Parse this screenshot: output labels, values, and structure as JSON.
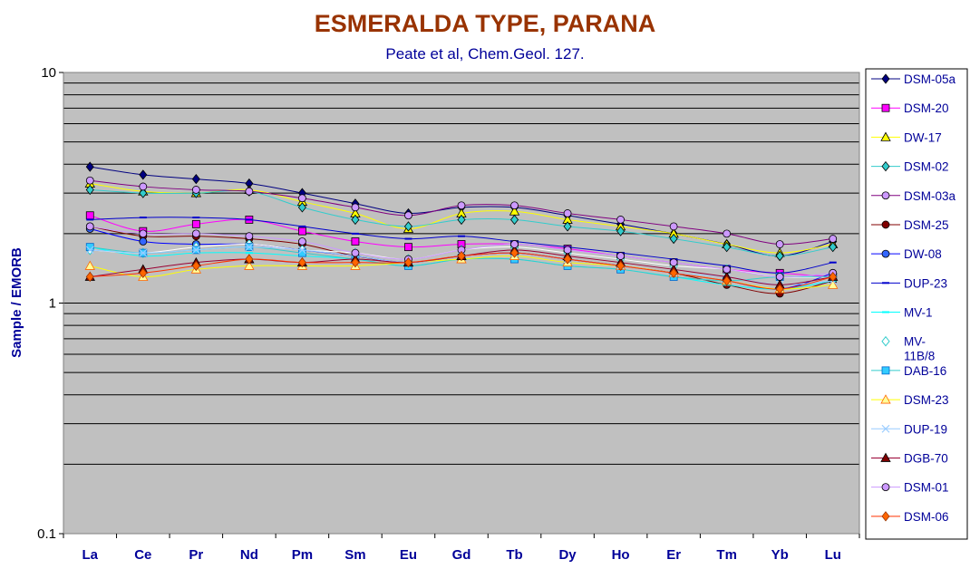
{
  "chart_data": {
    "type": "line",
    "title": "ESMERALDA TYPE, PARANA",
    "subtitle": "Peate et al, Chem.Geol. 127.",
    "ylabel": "Sample / EMORB",
    "xlabel": "",
    "yscale": "log",
    "ylim": [
      0.1,
      10
    ],
    "yticks": [
      {
        "value": 0.1,
        "label": "0.1"
      },
      {
        "value": 1,
        "label": "1"
      },
      {
        "value": 10,
        "label": "10"
      }
    ],
    "grid": true,
    "legend_position": "right",
    "plot_background": "#c0c0c0",
    "categories": [
      "La",
      "Ce",
      "Pr",
      "Nd",
      "Pm",
      "Sm",
      "Eu",
      "Gd",
      "Tb",
      "Dy",
      "Ho",
      "Er",
      "Tm",
      "Yb",
      "Lu"
    ],
    "series": [
      {
        "name": "DSM-05a",
        "color": "#000080",
        "marker": "diamond",
        "marker_fill": "#000080",
        "values": [
          3.9,
          3.6,
          3.45,
          3.3,
          3.0,
          2.7,
          2.45,
          2.6,
          2.6,
          2.4,
          2.2,
          2.0,
          1.8,
          1.6,
          1.85
        ]
      },
      {
        "name": "DSM-20",
        "color": "#ff00ff",
        "marker": "square",
        "marker_fill": "#ff00ff",
        "values": [
          2.4,
          2.05,
          2.2,
          2.3,
          2.05,
          1.85,
          1.75,
          1.8,
          1.8,
          1.72,
          1.6,
          1.5,
          1.4,
          1.35,
          1.3
        ]
      },
      {
        "name": "DW-17",
        "color": "#ffff00",
        "marker": "triangle",
        "marker_fill": "#ffff00",
        "values": [
          3.3,
          3.05,
          3.0,
          3.1,
          2.75,
          2.45,
          2.1,
          2.45,
          2.5,
          2.3,
          2.15,
          2.0,
          1.8,
          1.65,
          1.8
        ]
      },
      {
        "name": "DSM-02",
        "color": "#33cccc",
        "marker": "diamond",
        "marker_fill": "#33cccc",
        "values": [
          3.1,
          3.0,
          3.0,
          3.05,
          2.6,
          2.3,
          2.15,
          2.3,
          2.3,
          2.15,
          2.05,
          1.9,
          1.75,
          1.6,
          1.75
        ]
      },
      {
        "name": "DSM-03a",
        "color": "#800080",
        "marker": "circle",
        "marker_fill": "#cc99ff",
        "values": [
          3.4,
          3.2,
          3.1,
          3.05,
          2.85,
          2.6,
          2.4,
          2.65,
          2.65,
          2.45,
          2.3,
          2.15,
          2.0,
          1.8,
          1.9
        ]
      },
      {
        "name": "DSM-25",
        "color": "#800000",
        "marker": "circle",
        "marker_fill": "#800000",
        "values": [
          2.15,
          1.95,
          1.95,
          1.9,
          1.8,
          1.6,
          1.5,
          1.6,
          1.65,
          1.55,
          1.45,
          1.35,
          1.2,
          1.1,
          1.25
        ]
      },
      {
        "name": "DW-08",
        "color": "#0000ff",
        "marker": "circle",
        "marker_fill": "#3366ff",
        "values": [
          2.1,
          1.85,
          1.8,
          1.8,
          1.7,
          1.6,
          1.5,
          1.6,
          1.65,
          1.55,
          1.45,
          1.35,
          1.25,
          1.15,
          1.35
        ]
      },
      {
        "name": "DUP-23",
        "color": "#0000cc",
        "marker": "dash",
        "marker_fill": "#0000cc",
        "values": [
          2.3,
          2.35,
          2.35,
          2.3,
          2.15,
          2.0,
          1.9,
          1.95,
          1.85,
          1.75,
          1.65,
          1.55,
          1.45,
          1.35,
          1.5
        ]
      },
      {
        "name": "MV-1",
        "color": "#00ffff",
        "marker": "dash",
        "marker_fill": "#00ffff",
        "values": [
          1.75,
          1.6,
          1.65,
          1.65,
          1.6,
          1.55,
          1.45,
          1.55,
          1.55,
          1.45,
          1.4,
          1.3,
          1.2,
          1.15,
          1.25
        ]
      },
      {
        "name": "MV-11B/8",
        "color": "#ffffff",
        "marker": "diamond-open",
        "marker_fill": "#ffffff",
        "marker_stroke": "#33cccc",
        "values": [
          1.7,
          1.65,
          1.75,
          1.8,
          1.7,
          1.65,
          1.55,
          1.7,
          1.75,
          1.65,
          1.55,
          1.45,
          1.4,
          1.3,
          1.3
        ]
      },
      {
        "name": "DAB-16",
        "color": "#33cccc",
        "marker": "square",
        "marker_fill": "#33ccff",
        "marker_stroke": "#0066cc",
        "values": [
          1.75,
          1.65,
          1.7,
          1.75,
          1.65,
          1.55,
          1.45,
          1.55,
          1.55,
          1.45,
          1.4,
          1.3,
          1.25,
          1.3,
          1.3
        ]
      },
      {
        "name": "DSM-23",
        "color": "#ffff00",
        "marker": "triangle",
        "marker_fill": "#ffff99",
        "marker_stroke": "#ff6600",
        "values": [
          1.45,
          1.3,
          1.4,
          1.45,
          1.45,
          1.45,
          1.5,
          1.55,
          1.6,
          1.5,
          1.45,
          1.35,
          1.25,
          1.15,
          1.2
        ]
      },
      {
        "name": "DUP-19",
        "color": "#99ccff",
        "marker": "x",
        "marker_fill": "#99ccff",
        "values": [
          1.7,
          1.65,
          1.7,
          1.75,
          1.7,
          1.6,
          1.5,
          1.6,
          1.65,
          1.55,
          1.45,
          1.35,
          1.3,
          1.2,
          1.25
        ]
      },
      {
        "name": "DGB-70",
        "color": "#990033",
        "marker": "triangle",
        "marker_fill": "#800000",
        "values": [
          1.3,
          1.4,
          1.5,
          1.55,
          1.5,
          1.55,
          1.5,
          1.6,
          1.7,
          1.6,
          1.5,
          1.4,
          1.3,
          1.2,
          1.3
        ]
      },
      {
        "name": "DSM-01",
        "color": "#cc99ff",
        "marker": "circle",
        "marker_fill": "#cc99ff",
        "values": [
          2.15,
          2.0,
          2.0,
          1.95,
          1.85,
          1.65,
          1.55,
          1.7,
          1.8,
          1.7,
          1.6,
          1.5,
          1.4,
          1.3,
          1.35
        ]
      },
      {
        "name": "DSM-06",
        "color": "#ff3300",
        "marker": "diamond",
        "marker_fill": "#ff6600",
        "marker_stroke": "#993300",
        "values": [
          1.3,
          1.35,
          1.45,
          1.55,
          1.5,
          1.5,
          1.5,
          1.6,
          1.65,
          1.55,
          1.45,
          1.35,
          1.25,
          1.15,
          1.3
        ]
      }
    ]
  }
}
